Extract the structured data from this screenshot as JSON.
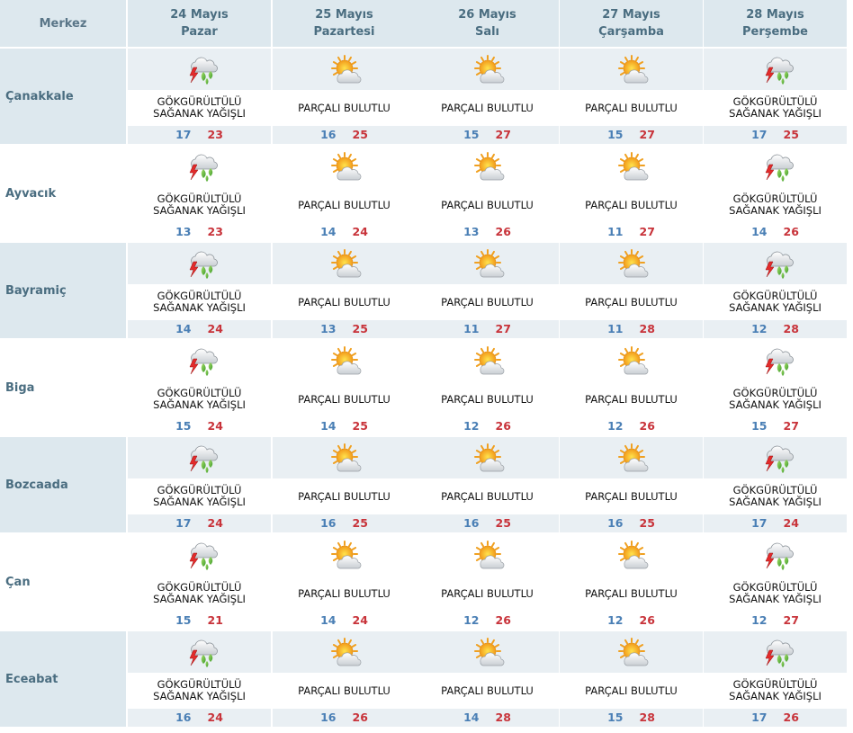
{
  "header": {
    "merkez_label": "Merkez",
    "days": [
      {
        "date": "24 Mayıs",
        "weekday": "Pazar"
      },
      {
        "date": "25 Mayıs",
        "weekday": "Pazartesi"
      },
      {
        "date": "26 Mayıs",
        "weekday": "Salı"
      },
      {
        "date": "27 Mayıs",
        "weekday": "Çarşamba"
      },
      {
        "date": "28 Mayıs",
        "weekday": "Perşembe"
      }
    ]
  },
  "rows": [
    {
      "city": "Çanakkale",
      "forecasts": [
        {
          "icon": "thunder-rain-icon",
          "line1": "GÖKGÜRÜLTÜLÜ",
          "line2": "SAĞANAK YAĞIŞLI",
          "min": "17",
          "max": "23"
        },
        {
          "icon": "partly-cloudy-icon",
          "line1": "PARÇALI BULUTLU",
          "line2": "",
          "min": "16",
          "max": "25"
        },
        {
          "icon": "partly-cloudy-icon",
          "line1": "PARÇALI BULUTLU",
          "line2": "",
          "min": "15",
          "max": "27"
        },
        {
          "icon": "partly-cloudy-icon",
          "line1": "PARÇALI BULUTLU",
          "line2": "",
          "min": "15",
          "max": "27"
        },
        {
          "icon": "thunder-rain-icon",
          "line1": "GÖKGÜRÜLTÜLÜ",
          "line2": "SAĞANAK YAĞIŞLI",
          "min": "17",
          "max": "25"
        }
      ]
    },
    {
      "city": "Ayvacık",
      "forecasts": [
        {
          "icon": "thunder-rain-icon",
          "line1": "GÖKGÜRÜLTÜLÜ",
          "line2": "SAĞANAK YAĞIŞLI",
          "min": "13",
          "max": "23"
        },
        {
          "icon": "partly-cloudy-icon",
          "line1": "PARÇALI BULUTLU",
          "line2": "",
          "min": "14",
          "max": "24"
        },
        {
          "icon": "partly-cloudy-icon",
          "line1": "PARÇALI BULUTLU",
          "line2": "",
          "min": "13",
          "max": "26"
        },
        {
          "icon": "partly-cloudy-icon",
          "line1": "PARÇALI BULUTLU",
          "line2": "",
          "min": "11",
          "max": "27"
        },
        {
          "icon": "thunder-rain-icon",
          "line1": "GÖKGÜRÜLTÜLÜ",
          "line2": "SAĞANAK YAĞIŞLI",
          "min": "14",
          "max": "26"
        }
      ]
    },
    {
      "city": "Bayramiç",
      "forecasts": [
        {
          "icon": "thunder-rain-icon",
          "line1": "GÖKGÜRÜLTÜLÜ",
          "line2": "SAĞANAK YAĞIŞLI",
          "min": "14",
          "max": "24"
        },
        {
          "icon": "partly-cloudy-icon",
          "line1": "PARÇALI BULUTLU",
          "line2": "",
          "min": "13",
          "max": "25"
        },
        {
          "icon": "partly-cloudy-icon",
          "line1": "PARÇALI BULUTLU",
          "line2": "",
          "min": "11",
          "max": "27"
        },
        {
          "icon": "partly-cloudy-icon",
          "line1": "PARÇALI BULUTLU",
          "line2": "",
          "min": "11",
          "max": "28"
        },
        {
          "icon": "thunder-rain-icon",
          "line1": "GÖKGÜRÜLTÜLÜ",
          "line2": "SAĞANAK YAĞIŞLI",
          "min": "12",
          "max": "28"
        }
      ]
    },
    {
      "city": "Biga",
      "forecasts": [
        {
          "icon": "thunder-rain-icon",
          "line1": "GÖKGÜRÜLTÜLÜ",
          "line2": "SAĞANAK YAĞIŞLI",
          "min": "15",
          "max": "24"
        },
        {
          "icon": "partly-cloudy-icon",
          "line1": "PARÇALI BULUTLU",
          "line2": "",
          "min": "14",
          "max": "25"
        },
        {
          "icon": "partly-cloudy-icon",
          "line1": "PARÇALI BULUTLU",
          "line2": "",
          "min": "12",
          "max": "26"
        },
        {
          "icon": "partly-cloudy-icon",
          "line1": "PARÇALI BULUTLU",
          "line2": "",
          "min": "12",
          "max": "26"
        },
        {
          "icon": "thunder-rain-icon",
          "line1": "GÖKGÜRÜLTÜLÜ",
          "line2": "SAĞANAK YAĞIŞLI",
          "min": "15",
          "max": "27"
        }
      ]
    },
    {
      "city": "Bozcaada",
      "forecasts": [
        {
          "icon": "thunder-rain-icon",
          "line1": "GÖKGÜRÜLTÜLÜ",
          "line2": "SAĞANAK YAĞIŞLI",
          "min": "17",
          "max": "24"
        },
        {
          "icon": "partly-cloudy-icon",
          "line1": "PARÇALI BULUTLU",
          "line2": "",
          "min": "16",
          "max": "25"
        },
        {
          "icon": "partly-cloudy-icon",
          "line1": "PARÇALI BULUTLU",
          "line2": "",
          "min": "16",
          "max": "25"
        },
        {
          "icon": "partly-cloudy-icon",
          "line1": "PARÇALI BULUTLU",
          "line2": "",
          "min": "16",
          "max": "25"
        },
        {
          "icon": "thunder-rain-icon",
          "line1": "GÖKGÜRÜLTÜLÜ",
          "line2": "SAĞANAK YAĞIŞLI",
          "min": "17",
          "max": "24"
        }
      ]
    },
    {
      "city": "Çan",
      "forecasts": [
        {
          "icon": "thunder-rain-icon",
          "line1": "GÖKGÜRÜLTÜLÜ",
          "line2": "SAĞANAK YAĞIŞLI",
          "min": "15",
          "max": "21"
        },
        {
          "icon": "partly-cloudy-icon",
          "line1": "PARÇALI BULUTLU",
          "line2": "",
          "min": "14",
          "max": "24"
        },
        {
          "icon": "partly-cloudy-icon",
          "line1": "PARÇALI BULUTLU",
          "line2": "",
          "min": "12",
          "max": "26"
        },
        {
          "icon": "partly-cloudy-icon",
          "line1": "PARÇALI BULUTLU",
          "line2": "",
          "min": "12",
          "max": "26"
        },
        {
          "icon": "thunder-rain-icon",
          "line1": "GÖKGÜRÜLTÜLÜ",
          "line2": "SAĞANAK YAĞIŞLI",
          "min": "12",
          "max": "27"
        }
      ]
    },
    {
      "city": "Eceabat",
      "forecasts": [
        {
          "icon": "thunder-rain-icon",
          "line1": "GÖKGÜRÜLTÜLÜ",
          "line2": "SAĞANAK YAĞIŞLI",
          "min": "16",
          "max": "24"
        },
        {
          "icon": "partly-cloudy-icon",
          "line1": "PARÇALI BULUTLU",
          "line2": "",
          "min": "16",
          "max": "26"
        },
        {
          "icon": "partly-cloudy-icon",
          "line1": "PARÇALI BULUTLU",
          "line2": "",
          "min": "14",
          "max": "28"
        },
        {
          "icon": "partly-cloudy-icon",
          "line1": "PARÇALI BULUTLU",
          "line2": "",
          "min": "15",
          "max": "28"
        },
        {
          "icon": "thunder-rain-icon",
          "line1": "GÖKGÜRÜLTÜLÜ",
          "line2": "SAĞANAK YAĞIŞLI",
          "min": "17",
          "max": "26"
        }
      ]
    }
  ],
  "colors": {
    "header_bg": "#dde8ee",
    "header_text": "#4a6d80",
    "min_temp": "#4a7fb5",
    "max_temp": "#c8333a"
  }
}
